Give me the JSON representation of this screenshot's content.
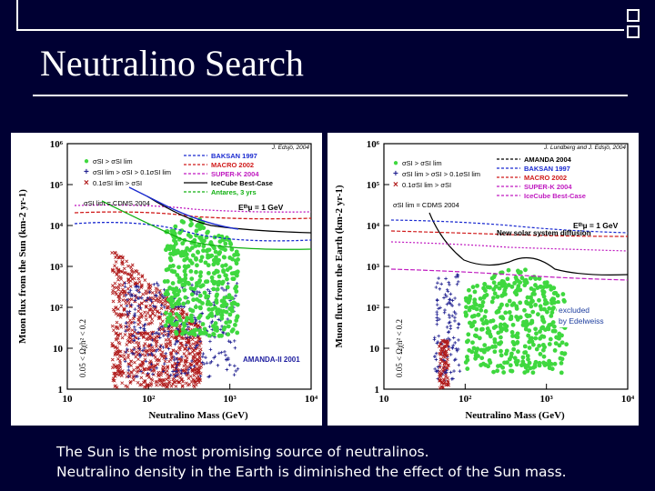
{
  "slide": {
    "title": "Neutralino Search",
    "captions": [
      "The Sun is the most promising source of neutralinos.",
      "Neutralino density in the Earth is diminished the effect of the Sun mass."
    ]
  },
  "chart_data": [
    {
      "type": "scatter",
      "xlabel": "Neutralino Mass (GeV)",
      "ylabel": "Muon flux from the Sun (km-2 yr-1)",
      "corner_note": "J. Edsjö, 2004",
      "xscale": "log",
      "yscale": "log",
      "xlim": [
        10,
        10000
      ],
      "ylim": [
        1,
        1000000
      ],
      "xticks": [
        "10",
        "10²",
        "10³",
        "10⁴"
      ],
      "yticks": [
        "1",
        "10",
        "10²",
        "10³",
        "10⁴",
        "10⁵",
        "10⁶"
      ],
      "side_label": "0.05 < Ωχh² < 0.2",
      "annotations": [
        "Eᵗʰµ = 1 GeV",
        "AMANDA-II 2001"
      ],
      "legend_models": [
        "σSI > σSI lim",
        "σSI lim > σSI > 0.1σSI lim",
        "0.1σSI lim > σSI"
      ],
      "legend_cdms": "σSI lim = CDMS 2004",
      "legend_experiments": [
        {
          "name": "BAKSAN 1997",
          "color": "#1a2ad0"
        },
        {
          "name": "MACRO 2002",
          "color": "#d01a1a"
        },
        {
          "name": "SUPER-K 2004",
          "color": "#c01ac0"
        },
        {
          "name": "IceCube Best-Case",
          "color": "#000000"
        },
        {
          "name": "Antares, 3 yrs",
          "color": "#10b010"
        }
      ]
    },
    {
      "type": "scatter",
      "xlabel": "Neutralino Mass (GeV)",
      "ylabel": "Muon flux from the Earth (km-2 yr-1)",
      "corner_note": "J. Lundberg and J. Edsjö, 2004",
      "xscale": "log",
      "yscale": "log",
      "xlim": [
        10,
        10000
      ],
      "ylim": [
        1,
        1000000
      ],
      "xticks": [
        "10",
        "10²",
        "10³",
        "10⁴"
      ],
      "yticks": [
        "1",
        "10",
        "10²",
        "10³",
        "10⁴",
        "10⁵",
        "10⁶"
      ],
      "side_label": "0.05 < Ωχh² < 0.2",
      "annotations": [
        "Eᵗʰµ = 1 GeV",
        "New solar system diffusion",
        "excluded",
        "by Edelweiss"
      ],
      "legend_models": [
        "σSI > σSI lim",
        "σSI lim > σSI > 0.1σSI lim",
        "0.1σSI lim > σSI"
      ],
      "legend_cdms": "σSI lim = CDMS 2004",
      "legend_experiments": [
        {
          "name": "AMANDA 2004",
          "color": "#000000"
        },
        {
          "name": "BAKSAN 1997",
          "color": "#1a2ad0"
        },
        {
          "name": "MACRO 2002",
          "color": "#d01a1a"
        },
        {
          "name": "SUPER-K 2004",
          "color": "#c01ac0"
        },
        {
          "name": "IceCube Best-Case",
          "color": "#c01ac0"
        }
      ]
    }
  ]
}
